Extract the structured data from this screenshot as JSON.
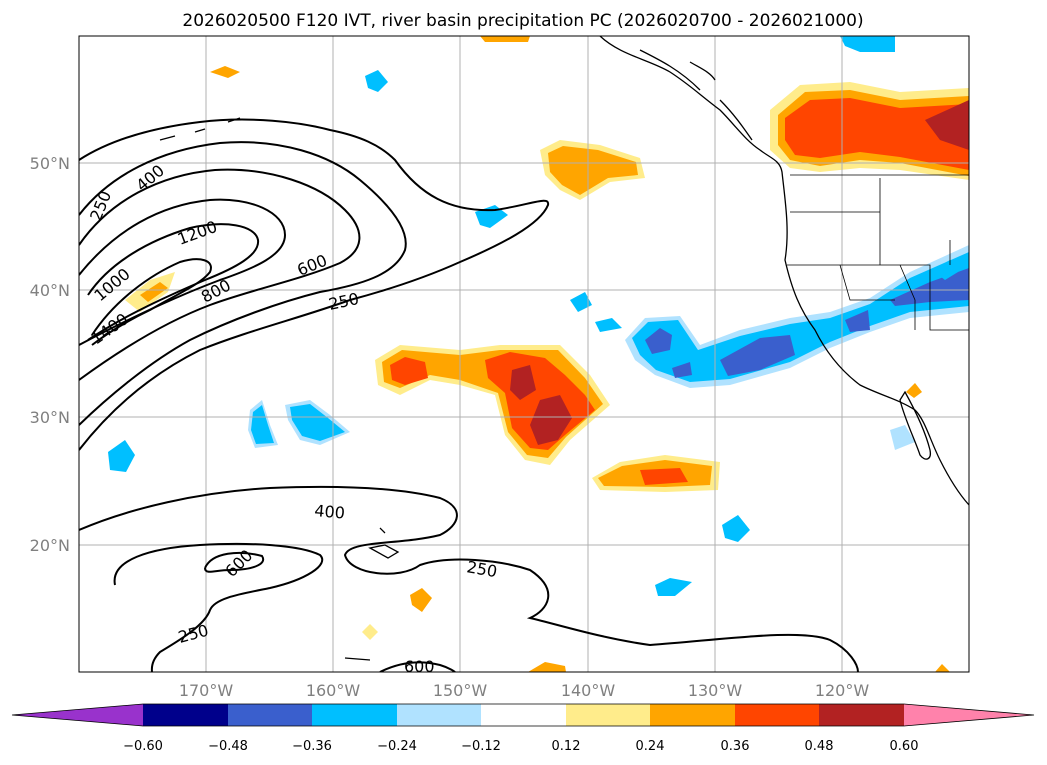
{
  "title": "2026020500 F120 IVT, river basin precipitation PC (2026020700 - 2026021000)",
  "lat_labels": [
    "50°N",
    "40°N",
    "30°N",
    "20°N"
  ],
  "lon_labels": [
    "170°W",
    "160°W",
    "150°W",
    "140°W",
    "130°W",
    "120°W"
  ],
  "ivt_contour_labels": [
    "250",
    "400",
    "1200",
    "1000",
    "800",
    "1400",
    "600",
    "250",
    "400",
    "600",
    "250",
    "250",
    "600"
  ],
  "colorbar": {
    "tick_labels": [
      "−0.60",
      "−0.48",
      "−0.36",
      "−0.24",
      "−0.12",
      "0.12",
      "0.24",
      "0.36",
      "0.48",
      "0.60"
    ],
    "colors": [
      "#9932cc",
      "#00008b",
      "#3a5fcd",
      "#00bfff",
      "#b0e2ff",
      "#ffffff",
      "#ffec8b",
      "#ffa500",
      "#ff4500",
      "#b22222",
      "#ff82ab"
    ]
  },
  "colors": {
    "neg_light": "#b0e2ff",
    "neg_mid": "#00bfff",
    "neg_dark": "#3a5fcd",
    "pos_light": "#ffec8b",
    "pos_mid": "#ffa500",
    "pos_strong": "#ff4500",
    "pos_dark": "#b22222"
  }
}
